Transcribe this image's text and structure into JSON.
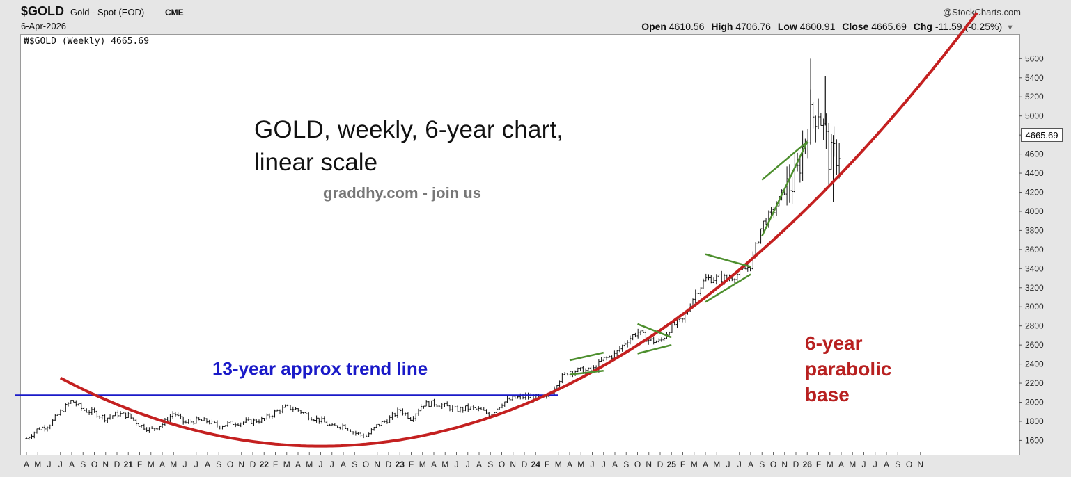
{
  "header": {
    "symbol": "$GOLD",
    "name": "Gold - Spot (EOD)",
    "exchange": "CME",
    "date": "6-Apr-2026",
    "brand": "@StockCharts.com",
    "open_label": "Open",
    "open": "4610.56",
    "high_label": "High",
    "high": "4706.76",
    "low_label": "Low",
    "low": "4600.91",
    "close_label": "Close",
    "close": "4665.69",
    "chg_label": "Chg",
    "chg": "-11.59 (-0.25%)"
  },
  "legend": "$GOLD (Weekly) 4665.69",
  "price_tag": "4665.69",
  "annotations": {
    "title_line1": "GOLD, weekly, 6-year chart,",
    "title_line2": "linear scale",
    "site": "graddhy.com - join us",
    "trend": "13-year approx trend line",
    "parabola_line1": "6-year",
    "parabola_line2": "parabolic",
    "parabola_line3": "base"
  },
  "colors": {
    "price": "#111111",
    "trend_line": "#1a1ac8",
    "parabola": "#c42020",
    "patterns": "#4d8f2e"
  },
  "chart_data": {
    "type": "bar",
    "title": "",
    "xlabel": "",
    "ylabel": "",
    "ylim": [
      1450,
      5850
    ],
    "yticks": [
      1600,
      1800,
      2000,
      2200,
      2400,
      2600,
      2800,
      3000,
      3200,
      3400,
      3600,
      3800,
      4000,
      4200,
      4400,
      4600,
      4800,
      5000,
      5200,
      5400,
      5600
    ],
    "ytick_labels": [
      "1600",
      "1800",
      "2000",
      "2200",
      "2400",
      "2600",
      "2800",
      "3000",
      "3200",
      "3400",
      "3600",
      "3800",
      "4000",
      "4200",
      "4400",
      "4600",
      "4800",
      "5000",
      "5200",
      "5400",
      "5600"
    ],
    "x_ticks": [
      "A",
      "M",
      "J",
      "J",
      "A",
      "S",
      "O",
      "N",
      "D",
      "21",
      "F",
      "M",
      "A",
      "M",
      "J",
      "J",
      "A",
      "S",
      "O",
      "N",
      "D",
      "22",
      "F",
      "M",
      "A",
      "M",
      "J",
      "J",
      "A",
      "S",
      "O",
      "N",
      "D",
      "23",
      "F",
      "M",
      "A",
      "M",
      "J",
      "J",
      "A",
      "S",
      "O",
      "N",
      "D",
      "24",
      "F",
      "M",
      "A",
      "M",
      "J",
      "J",
      "A",
      "S",
      "O",
      "N",
      "D",
      "25",
      "F",
      "M",
      "A",
      "M",
      "J",
      "J",
      "A",
      "S",
      "O",
      "N",
      "D",
      "26",
      "F",
      "M",
      "A",
      "M",
      "J",
      "J",
      "A",
      "S",
      "O",
      "N"
    ],
    "x_start": "2020-04",
    "price_path_monthly": [
      {
        "m": 0,
        "v": 1620
      },
      {
        "m": 1,
        "v": 1720
      },
      {
        "m": 2,
        "v": 1760
      },
      {
        "m": 3,
        "v": 1900
      },
      {
        "m": 4,
        "v": 2020
      },
      {
        "m": 5,
        "v": 1920
      },
      {
        "m": 6,
        "v": 1890
      },
      {
        "m": 7,
        "v": 1830
      },
      {
        "m": 8,
        "v": 1880
      },
      {
        "m": 9,
        "v": 1860
      },
      {
        "m": 10,
        "v": 1760
      },
      {
        "m": 11,
        "v": 1710
      },
      {
        "m": 12,
        "v": 1770
      },
      {
        "m": 13,
        "v": 1890
      },
      {
        "m": 14,
        "v": 1780
      },
      {
        "m": 15,
        "v": 1810
      },
      {
        "m": 16,
        "v": 1800
      },
      {
        "m": 17,
        "v": 1750
      },
      {
        "m": 18,
        "v": 1780
      },
      {
        "m": 19,
        "v": 1790
      },
      {
        "m": 20,
        "v": 1800
      },
      {
        "m": 21,
        "v": 1820
      },
      {
        "m": 22,
        "v": 1900
      },
      {
        "m": 23,
        "v": 1950
      },
      {
        "m": 24,
        "v": 1920
      },
      {
        "m": 25,
        "v": 1850
      },
      {
        "m": 26,
        "v": 1810
      },
      {
        "m": 27,
        "v": 1740
      },
      {
        "m": 28,
        "v": 1760
      },
      {
        "m": 29,
        "v": 1680
      },
      {
        "m": 30,
        "v": 1640
      },
      {
        "m": 31,
        "v": 1760
      },
      {
        "m": 32,
        "v": 1820
      },
      {
        "m": 33,
        "v": 1920
      },
      {
        "m": 34,
        "v": 1830
      },
      {
        "m": 35,
        "v": 1980
      },
      {
        "m": 36,
        "v": 1990
      },
      {
        "m": 37,
        "v": 1960
      },
      {
        "m": 38,
        "v": 1920
      },
      {
        "m": 39,
        "v": 1940
      },
      {
        "m": 40,
        "v": 1920
      },
      {
        "m": 41,
        "v": 1870
      },
      {
        "m": 42,
        "v": 1990
      },
      {
        "m": 43,
        "v": 2040
      },
      {
        "m": 44,
        "v": 2060
      },
      {
        "m": 45,
        "v": 2050
      },
      {
        "m": 46,
        "v": 2040
      },
      {
        "m": 47,
        "v": 2230
      },
      {
        "m": 48,
        "v": 2330
      },
      {
        "m": 49,
        "v": 2330
      },
      {
        "m": 50,
        "v": 2330
      },
      {
        "m": 51,
        "v": 2450
      },
      {
        "m": 52,
        "v": 2500
      },
      {
        "m": 53,
        "v": 2640
      },
      {
        "m": 54,
        "v": 2740
      },
      {
        "m": 55,
        "v": 2650
      },
      {
        "m": 56,
        "v": 2630
      },
      {
        "m": 57,
        "v": 2800
      },
      {
        "m": 58,
        "v": 2860
      },
      {
        "m": 59,
        "v": 3120
      },
      {
        "m": 60,
        "v": 3290
      },
      {
        "m": 61,
        "v": 3300
      },
      {
        "m": 62,
        "v": 3300
      },
      {
        "m": 63,
        "v": 3350
      },
      {
        "m": 64,
        "v": 3440
      },
      {
        "m": 65,
        "v": 3860
      },
      {
        "m": 66,
        "v": 4000
      },
      {
        "m": 67,
        "v": 4230
      },
      {
        "m": 68,
        "v": 4320
      },
      {
        "m": 69,
        "v": 4900
      },
      {
        "m": 70,
        "v": 5100
      },
      {
        "m": 71,
        "v": 4530
      },
      {
        "m": 72,
        "v": 4666
      }
    ],
    "trend_line": {
      "start": {
        "m": -1,
        "v": 2075
      },
      "end": {
        "m": 47,
        "v": 2075
      }
    },
    "parabola": {
      "start": {
        "m": 3,
        "v": 1860
      },
      "vertex": {
        "m": 26,
        "v": 1540
      },
      "through": {
        "m": 66,
        "v": 3700
      }
    },
    "pattern_lines": [
      {
        "a": {
          "m": 48,
          "v": 2440
        },
        "b": {
          "m": 51,
          "v": 2520
        }
      },
      {
        "a": {
          "m": 48,
          "v": 2290
        },
        "b": {
          "m": 51,
          "v": 2330
        }
      },
      {
        "a": {
          "m": 54,
          "v": 2820
        },
        "b": {
          "m": 57,
          "v": 2680
        }
      },
      {
        "a": {
          "m": 54,
          "v": 2510
        },
        "b": {
          "m": 57,
          "v": 2600
        }
      },
      {
        "a": {
          "m": 60,
          "v": 3550
        },
        "b": {
          "m": 64,
          "v": 3420
        }
      },
      {
        "a": {
          "m": 60,
          "v": 3050
        },
        "b": {
          "m": 64,
          "v": 3340
        }
      },
      {
        "a": {
          "m": 65,
          "v": 4330
        },
        "b": {
          "m": 69,
          "v": 4730
        }
      },
      {
        "a": {
          "m": 65,
          "v": 3740
        },
        "b": {
          "m": 69,
          "v": 4730
        }
      }
    ]
  }
}
